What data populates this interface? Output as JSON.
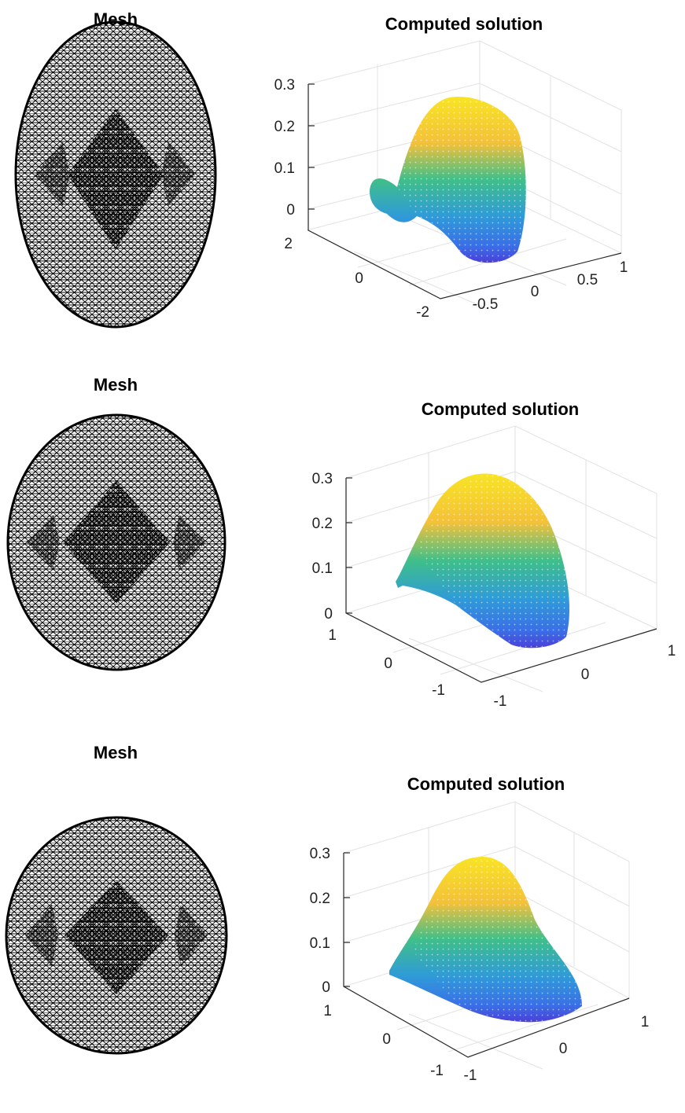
{
  "panels": [
    {
      "mesh_title": "Mesh",
      "plot_title": "Computed solution",
      "z_ticks": [
        "0.3",
        "0.2",
        "0.1",
        "0"
      ],
      "y_ticks": [
        "2",
        "0",
        "-2"
      ],
      "x_ticks": [
        "-0.5",
        "0",
        "0.5",
        "1"
      ]
    },
    {
      "mesh_title": "Mesh",
      "plot_title": "Computed solution",
      "z_ticks": [
        "0.3",
        "0.2",
        "0.1",
        "0"
      ],
      "y_ticks": [
        "1",
        "0",
        "-1"
      ],
      "x_ticks": [
        "-1",
        "0",
        "1"
      ]
    },
    {
      "mesh_title": "Mesh",
      "plot_title": "Computed solution",
      "z_ticks": [
        "0.3",
        "0.2",
        "0.1",
        "0"
      ],
      "y_ticks": [
        "1",
        "0",
        "-1"
      ],
      "x_ticks": [
        "-1",
        "0",
        "1"
      ]
    }
  ],
  "colors": {
    "mesh_line": "#000000",
    "surface_top": "#f9e424",
    "surface_mid": "#3fbf8a",
    "surface_low": "#3a7fe0",
    "surface_base": "#4a3fd8"
  }
}
